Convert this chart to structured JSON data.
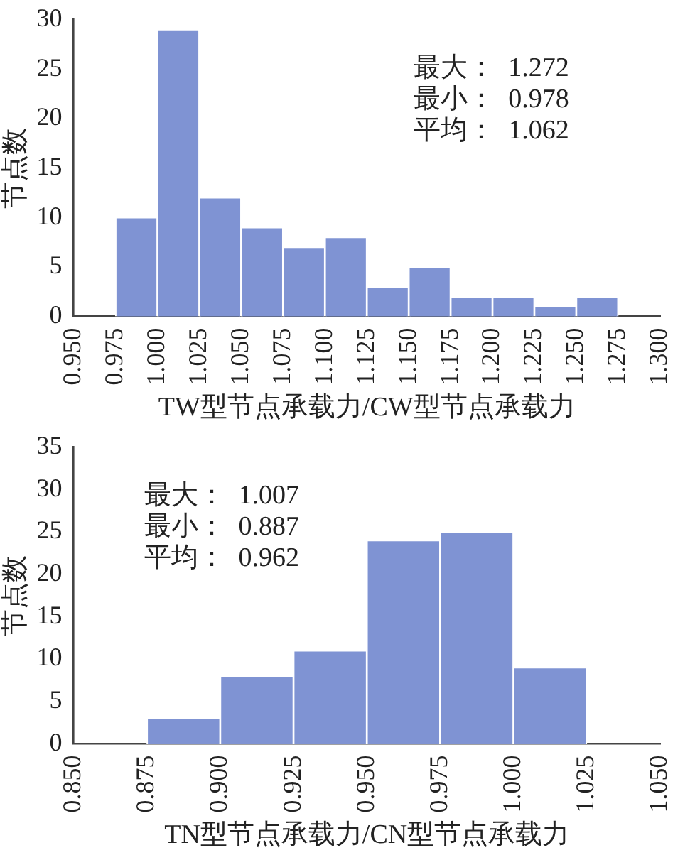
{
  "chart_data": [
    {
      "type": "histogram",
      "xlabel": "TW型节点承载力/CW型节点承载力",
      "ylabel": "节点数",
      "color": "#7f93d3",
      "bins": [
        0.975,
        1.0,
        1.025,
        1.05,
        1.075,
        1.1,
        1.125,
        1.15,
        1.175,
        1.2,
        1.225,
        1.25,
        1.275
      ],
      "values": [
        10,
        29,
        12,
        9,
        7,
        8,
        3,
        5,
        2,
        2,
        1,
        2
      ],
      "xlim": [
        0.95,
        1.3
      ],
      "xticks": [
        {
          "value": 0.95,
          "label": "0.950"
        },
        {
          "value": 0.975,
          "label": "0.975"
        },
        {
          "value": 1.0,
          "label": "1.000"
        },
        {
          "value": 1.025,
          "label": "1.025"
        },
        {
          "value": 1.05,
          "label": "1.050"
        },
        {
          "value": 1.075,
          "label": "1.075"
        },
        {
          "value": 1.1,
          "label": "1.100"
        },
        {
          "value": 1.125,
          "label": "1.125"
        },
        {
          "value": 1.15,
          "label": "1.150"
        },
        {
          "value": 1.175,
          "label": "1.175"
        },
        {
          "value": 1.2,
          "label": "1.200"
        },
        {
          "value": 1.225,
          "label": "1.225"
        },
        {
          "value": 1.25,
          "label": "1.250"
        },
        {
          "value": 1.275,
          "label": "1.275"
        },
        {
          "value": 1.3,
          "label": "1.300"
        }
      ],
      "ylim": [
        0,
        30
      ],
      "yticks": [
        0,
        5,
        10,
        15,
        20,
        25,
        30
      ],
      "grid": false,
      "annotations": [
        "最大：  1.272",
        "最小：  0.978",
        "平均：  1.062"
      ]
    },
    {
      "type": "histogram",
      "xlabel": "TN型节点承载力/CN型节点承载力",
      "ylabel": "节点数",
      "color": "#7f93d3",
      "bins": [
        0.875,
        0.9,
        0.925,
        0.95,
        0.975,
        1.0,
        1.025
      ],
      "values": [
        3,
        8,
        11,
        24,
        25,
        9
      ],
      "xlim": [
        0.85,
        1.05
      ],
      "xticks": [
        {
          "value": 0.85,
          "label": "0.850"
        },
        {
          "value": 0.875,
          "label": "0.875"
        },
        {
          "value": 0.9,
          "label": "0.900"
        },
        {
          "value": 0.925,
          "label": "0.925"
        },
        {
          "value": 0.95,
          "label": "0.950"
        },
        {
          "value": 0.975,
          "label": "0.975"
        },
        {
          "value": 1.0,
          "label": "1.000"
        },
        {
          "value": 1.025,
          "label": "1.025"
        },
        {
          "value": 1.05,
          "label": "1.050"
        }
      ],
      "ylim": [
        0,
        35
      ],
      "yticks": [
        0,
        5,
        10,
        15,
        20,
        25,
        30,
        35
      ],
      "grid": false,
      "annotations": [
        "最大：  1.007",
        "最小：  0.887",
        "平均：  0.962"
      ]
    }
  ]
}
